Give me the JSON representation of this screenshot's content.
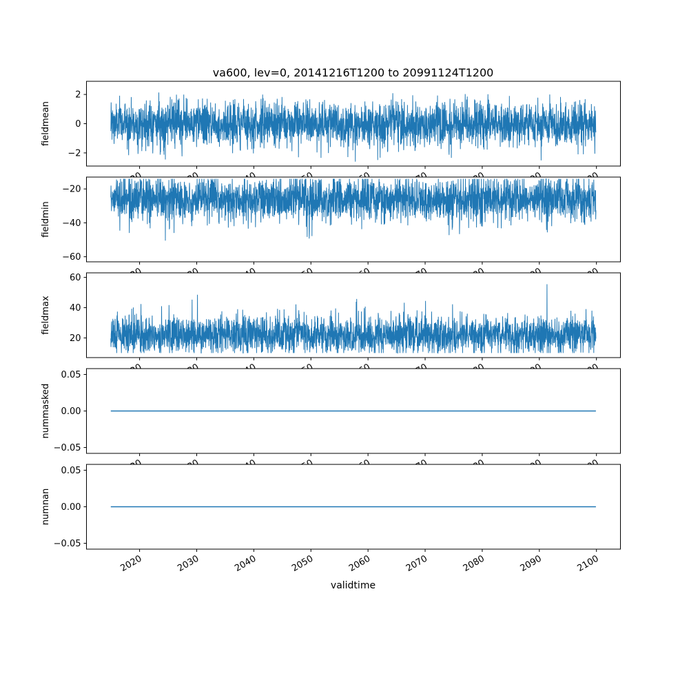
{
  "chart_data": {
    "type": "line",
    "title": "va600, lev=0, 20141216T1200 to 20991124T1200",
    "xlabel": "validtime",
    "background": "#ffffff",
    "line_color": "#1f77b4",
    "grid": false,
    "legend": "none",
    "x_range": [
      2014.96,
      2099.9
    ],
    "xlim": [
      2010.7,
      2104.2
    ],
    "xticks": [
      2020,
      2030,
      2040,
      2050,
      2060,
      2070,
      2080,
      2090,
      2100
    ],
    "xtick_rotation_deg": 30,
    "charts": [
      {
        "ylabel": "fieldmean",
        "ylim": [
          -2.9,
          2.9
        ],
        "yticks": [
          2,
          0,
          -2
        ],
        "ytick_labels": [
          "2",
          "0",
          "−2"
        ],
        "series": {
          "kind": "noise",
          "baseline": 0,
          "sigma": 0.78,
          "clip": [
            -2.6,
            2.6
          ],
          "spike_prob": 0,
          "spike_scale": 0,
          "n": 2800,
          "seed": 1234
        }
      },
      {
        "ylabel": "fieldmin",
        "ylim": [
          -63,
          -13
        ],
        "yticks": [
          -20,
          -40,
          -60
        ],
        "ytick_labels": [
          "−20",
          "−40",
          "−60"
        ],
        "series": {
          "kind": "noise",
          "baseline": -26,
          "sigma": 6.5,
          "clip": [
            -62,
            -14
          ],
          "spike_prob": 0.012,
          "spike_scale": -22,
          "n": 2800,
          "seed": 2233
        }
      },
      {
        "ylabel": "fieldmax",
        "ylim": [
          7,
          63
        ],
        "yticks": [
          60,
          40,
          20
        ],
        "ytick_labels": [
          "60",
          "40",
          "20"
        ],
        "series": {
          "kind": "noise",
          "baseline": 22,
          "sigma": 6.5,
          "clip": [
            10,
            61
          ],
          "spike_prob": 0.012,
          "spike_scale": 22,
          "n": 2800,
          "seed": 3344
        }
      },
      {
        "ylabel": "nummasked",
        "ylim": [
          -0.058,
          0.058
        ],
        "yticks": [
          0.05,
          0,
          -0.05
        ],
        "ytick_labels": [
          "0.05",
          "0.00",
          "−0.05"
        ],
        "series": {
          "kind": "constant",
          "value": 0
        }
      },
      {
        "ylabel": "numnan",
        "ylim": [
          -0.058,
          0.058
        ],
        "yticks": [
          0.05,
          0,
          -0.05
        ],
        "ytick_labels": [
          "0.05",
          "0.00",
          "−0.05"
        ],
        "series": {
          "kind": "constant",
          "value": 0
        }
      }
    ]
  }
}
